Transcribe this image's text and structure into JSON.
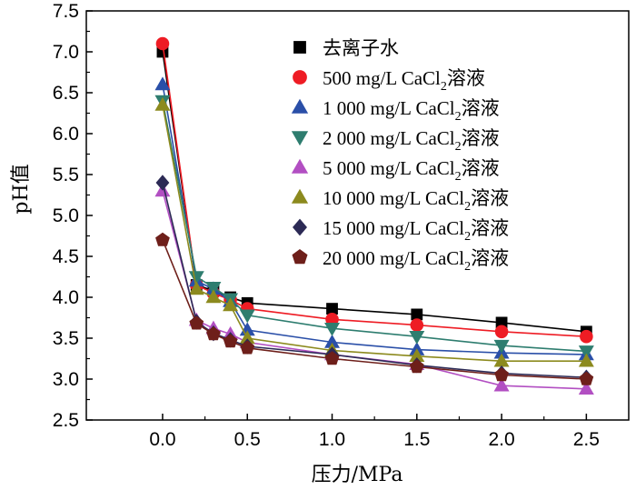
{
  "chart_data": {
    "type": "line",
    "xlabel": "压力/MPa",
    "ylabel": "pH值",
    "xlim": [
      -0.45,
      2.75
    ],
    "ylim": [
      2.5,
      7.5
    ],
    "xticks": [
      "0.0",
      "0.5",
      "1.0",
      "1.5",
      "2.0",
      "2.5"
    ],
    "yticks": [
      "2.5",
      "3.0",
      "3.5",
      "4.0",
      "4.5",
      "5.0",
      "5.5",
      "6.0",
      "6.5",
      "7.0",
      "7.5"
    ],
    "legend_position": "top-right",
    "x": [
      0.0,
      0.2,
      0.3,
      0.4,
      0.5,
      1.0,
      1.5,
      2.0,
      2.5
    ],
    "series": [
      {
        "name": "去离子水",
        "label_parts": [
          "去离子水"
        ],
        "marker": "square",
        "color": "#000000",
        "line_color": "#000000",
        "values": [
          7.0,
          4.15,
          4.08,
          4.0,
          3.93,
          3.86,
          3.79,
          3.69,
          3.58
        ]
      },
      {
        "name": "500 mg/L CaCl2溶液",
        "label_parts": [
          "500 mg/L CaCl",
          "2",
          "溶液"
        ],
        "marker": "circle",
        "color": "#ee1c24",
        "line_color": "#ee1c24",
        "values": [
          7.1,
          4.15,
          4.05,
          3.97,
          3.86,
          3.73,
          3.66,
          3.58,
          3.52
        ]
      },
      {
        "name": "1 000 mg/L CaCl2溶液",
        "label_parts": [
          "1 000 mg/L CaCl",
          "2",
          "溶液"
        ],
        "marker": "triangle-up",
        "color": "#2a4fa8",
        "line_color": "#2a4fa8",
        "values": [
          6.6,
          4.2,
          4.1,
          3.95,
          3.6,
          3.45,
          3.36,
          3.32,
          3.3
        ]
      },
      {
        "name": "2 000 mg/L CaCl2溶液",
        "label_parts": [
          "2 000 mg/L CaCl",
          "2",
          "溶液"
        ],
        "marker": "triangle-down",
        "color": "#2e7d6f",
        "line_color": "#2e7d6f",
        "values": [
          6.4,
          4.25,
          4.12,
          3.98,
          3.78,
          3.62,
          3.52,
          3.41,
          3.34
        ]
      },
      {
        "name": "5 000 mg/L CaCl2溶液",
        "label_parts": [
          "5 000 mg/L CaCl",
          "2",
          "溶液"
        ],
        "marker": "triangle-up",
        "color": "#b24fc2",
        "line_color": "#b24fc2",
        "values": [
          5.3,
          3.72,
          3.62,
          3.55,
          3.45,
          3.3,
          3.18,
          2.92,
          2.88
        ]
      },
      {
        "name": "10 000 mg/L CaCl2溶液",
        "label_parts": [
          "10 000 mg/L CaCl",
          "2",
          "溶液"
        ],
        "marker": "triangle-up",
        "color": "#8c8a1e",
        "line_color": "#8c8a1e",
        "values": [
          6.35,
          4.1,
          4.0,
          3.9,
          3.5,
          3.35,
          3.28,
          3.22,
          3.22
        ]
      },
      {
        "name": "15 000 mg/L CaCl2溶液",
        "label_parts": [
          "15 000 mg/L CaCl",
          "2",
          "溶液"
        ],
        "marker": "diamond",
        "color": "#2c2a55",
        "line_color": "#2c2a55",
        "values": [
          5.4,
          3.7,
          3.56,
          3.48,
          3.4,
          3.3,
          3.17,
          3.07,
          3.02
        ]
      },
      {
        "name": "20 000 mg/L CaCl2溶液",
        "label_parts": [
          "20 000 mg/L CaCl",
          "2",
          "溶液"
        ],
        "marker": "pentagon",
        "color": "#6e1f1a",
        "line_color": "#6e1f1a",
        "values": [
          4.7,
          3.68,
          3.55,
          3.46,
          3.38,
          3.25,
          3.15,
          3.05,
          3.0
        ]
      }
    ]
  }
}
